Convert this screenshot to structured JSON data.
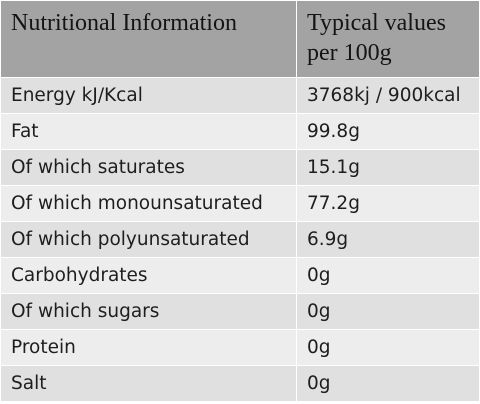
{
  "table": {
    "headers": [
      "Nutritional Information",
      "Typical values per 100g"
    ],
    "rows": [
      {
        "label": "Energy kJ/Kcal",
        "value": "3768kj / 900kcal"
      },
      {
        "label": "Fat",
        "value": "99.8g"
      },
      {
        "label": "Of which saturates",
        "value": "15.1g"
      },
      {
        "label": "Of which monounsaturated",
        "value": "77.2g"
      },
      {
        "label": "Of which polyunsaturated",
        "value": "6.9g"
      },
      {
        "label": "Carbohydrates",
        "value": "0g"
      },
      {
        "label": "Of which sugars",
        "value": "0g"
      },
      {
        "label": "Protein",
        "value": "0g"
      },
      {
        "label": "Salt",
        "value": "0g"
      }
    ],
    "colors": {
      "header_bg": "#a3a3a3",
      "row_bg": "#e0e0e0",
      "row_bg_alt": "#ededed",
      "text": "#1e1e1e"
    }
  }
}
